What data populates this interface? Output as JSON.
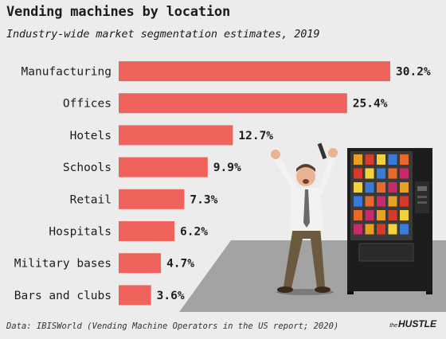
{
  "header": {
    "title": "Vending machines by location",
    "subtitle": "Industry-wide market segmentation estimates, 2019"
  },
  "chart_data": {
    "type": "bar",
    "orientation": "horizontal",
    "title": "Vending machines by location",
    "subtitle": "Industry-wide market segmentation estimates, 2019",
    "categories": [
      "Manufacturing",
      "Offices",
      "Hotels",
      "Schools",
      "Retail",
      "Hospitals",
      "Military bases",
      "Bars and clubs"
    ],
    "values": [
      30.2,
      25.4,
      12.7,
      9.9,
      7.3,
      6.2,
      4.7,
      3.6
    ],
    "value_labels": [
      "30.2%",
      "25.4%",
      "12.7%",
      "9.9%",
      "7.3%",
      "6.2%",
      "4.7%",
      "3.6%"
    ],
    "unit": "%",
    "bar_color": "#f0625c",
    "grid": false,
    "xlabel": "",
    "ylabel": ""
  },
  "footer": {
    "source": "Data: IBISWorld (Vending Machine Operators in the US report; 2020)",
    "brand_prefix": "the",
    "brand_name": "HUSTLE"
  },
  "illustration": {
    "icons": [
      "celebrating-man-icon",
      "vending-machine-icon"
    ]
  }
}
